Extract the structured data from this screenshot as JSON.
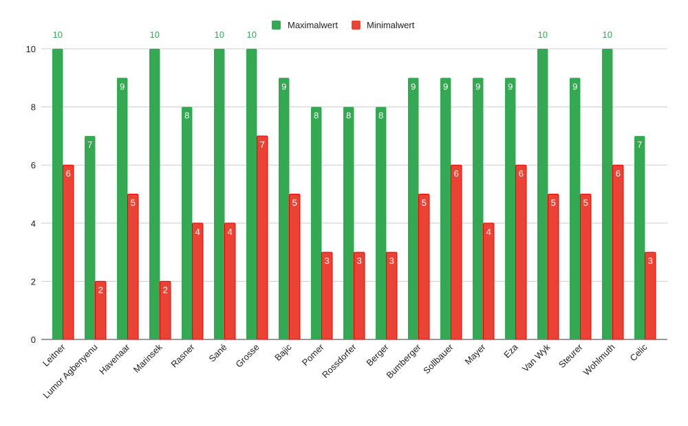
{
  "chart_data": {
    "type": "bar",
    "title": "",
    "xlabel": "",
    "ylabel": "",
    "ylim": [
      0,
      10
    ],
    "yticks": [
      0,
      2,
      4,
      6,
      8,
      10
    ],
    "grid": true,
    "legend_position": "top",
    "categories": [
      "Leitner",
      "Lumor Agbenyenu",
      "Havenaar",
      "Marinsek",
      "Rasner",
      "Sané",
      "Grosse",
      "Bajic",
      "Pomer",
      "Rossdorfer",
      "Berger",
      "Bumberger",
      "Sollbauer",
      "Mayer",
      "Eza",
      "Van Wyk",
      "Steurer",
      "Wohlmuth",
      "Celic"
    ],
    "series": [
      {
        "name": "Maximalwert",
        "color": "#34a853",
        "values": [
          10,
          7,
          9,
          10,
          8,
          10,
          10,
          9,
          8,
          8,
          8,
          9,
          9,
          9,
          9,
          10,
          9,
          10,
          7
        ]
      },
      {
        "name": "Minimalwert",
        "color": "#ea4335",
        "values": [
          6,
          2,
          5,
          2,
          4,
          4,
          7,
          5,
          3,
          3,
          3,
          5,
          6,
          4,
          6,
          5,
          5,
          6,
          3
        ]
      }
    ]
  }
}
